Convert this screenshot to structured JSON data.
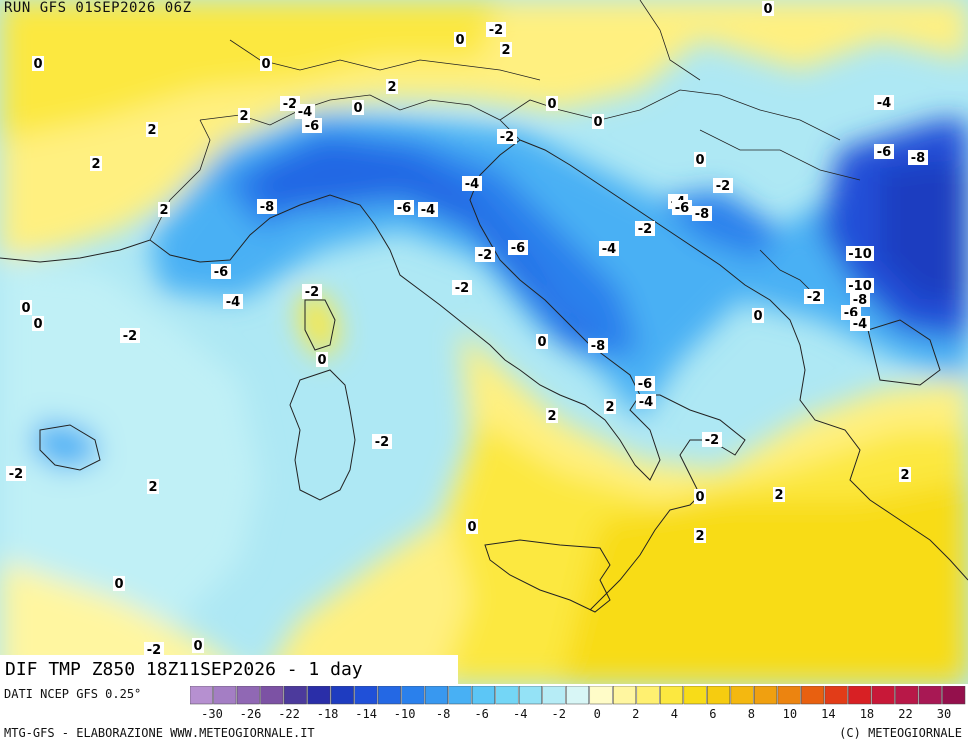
{
  "header": {
    "run": "RUN GFS 01SEP2026 06Z"
  },
  "map_title": "DIF TMP Z850 18Z11SEP2026 - 1 day",
  "data_source": "DATI NCEP GFS 0.25°",
  "footer": {
    "left": "MTG-GFS - ELABORAZIONE WWW.METEOGIORNALE.IT",
    "right": "(C) METEOGIORNALE"
  },
  "legend": {
    "labels": [
      "-30",
      "-26",
      "-22",
      "-18",
      "-14",
      "-10",
      "-8",
      "-6",
      "-4",
      "-2",
      "0",
      "2",
      "4",
      "6",
      "8",
      "10",
      "14",
      "18",
      "22",
      "30"
    ],
    "colors": [
      "#b690d0",
      "#a47ec4",
      "#9068b4",
      "#7c52a4",
      "#4c3a9c",
      "#2a2ea8",
      "#1e3cc0",
      "#2050d8",
      "#2468e4",
      "#2a80ec",
      "#3898f0",
      "#48b0f4",
      "#5cc6f6",
      "#74d6f6",
      "#94e2f6",
      "#b6ecf6",
      "#d8f6f6",
      "#fffcc8",
      "#fff6a0",
      "#fff070",
      "#fce840",
      "#f8dc18",
      "#f6cc10",
      "#f4b810",
      "#f0a010",
      "#ec8410",
      "#e86010",
      "#e23c18",
      "#d82024",
      "#c81838",
      "#b81848",
      "#a81854",
      "#94104c"
    ]
  },
  "values": [
    {
      "t": "0"
    },
    {
      "t": "-2"
    },
    {
      "t": "2"
    },
    {
      "t": "0"
    },
    {
      "t": "0"
    },
    {
      "t": "0"
    },
    {
      "t": "2"
    },
    {
      "t": "2"
    },
    {
      "t": "-2"
    },
    {
      "t": "-4"
    },
    {
      "t": "-6"
    },
    {
      "t": "0"
    },
    {
      "t": "0"
    },
    {
      "t": "2"
    },
    {
      "t": "-2"
    },
    {
      "t": "-4"
    },
    {
      "t": "0"
    },
    {
      "t": "-6"
    },
    {
      "t": "-8"
    },
    {
      "t": "2"
    },
    {
      "t": "2"
    },
    {
      "t": "-8"
    },
    {
      "t": "-6"
    },
    {
      "t": "-4"
    },
    {
      "t": "-4"
    },
    {
      "t": "0"
    },
    {
      "t": "-4"
    },
    {
      "t": "-6"
    },
    {
      "t": "-8"
    },
    {
      "t": "-2"
    },
    {
      "t": "-2"
    },
    {
      "t": "-6"
    },
    {
      "t": "-4"
    },
    {
      "t": "-10"
    },
    {
      "t": "-6"
    },
    {
      "t": "-4"
    },
    {
      "t": "-2"
    },
    {
      "t": "-2"
    },
    {
      "t": "-10"
    },
    {
      "t": "-8"
    },
    {
      "t": "-6"
    },
    {
      "t": "-4"
    },
    {
      "t": "-2"
    },
    {
      "t": "0"
    },
    {
      "t": "0"
    },
    {
      "t": "-2"
    },
    {
      "t": "0"
    },
    {
      "t": "-8"
    },
    {
      "t": "-6"
    },
    {
      "t": "-4"
    },
    {
      "t": "0"
    },
    {
      "t": "2"
    },
    {
      "t": "2"
    },
    {
      "t": "-2"
    },
    {
      "t": "-2"
    },
    {
      "t": "-2"
    },
    {
      "t": "-2"
    },
    {
      "t": "2"
    },
    {
      "t": "0"
    },
    {
      "t": "2"
    },
    {
      "t": "0"
    },
    {
      "t": "2"
    },
    {
      "t": "2"
    },
    {
      "t": "0"
    },
    {
      "t": "0"
    },
    {
      "t": "-2"
    },
    {
      "t": "0"
    }
  ]
}
